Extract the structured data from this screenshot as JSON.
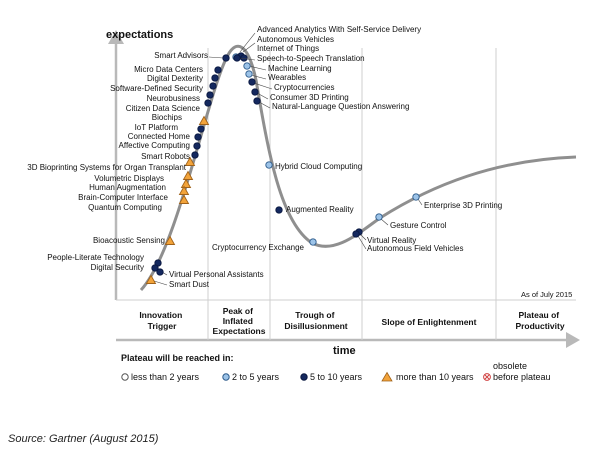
{
  "y_axis_label": "expectations",
  "x_axis_label": "time",
  "as_of": "As of July 2015",
  "source": "Source: Gartner (August 2015)",
  "phases": [
    {
      "id": "innovation-trigger",
      "lines": [
        "Innovation",
        "Trigger"
      ]
    },
    {
      "id": "peak-of-inflated-expectations",
      "lines": [
        "Peak of",
        "Inflated",
        "Expectations"
      ]
    },
    {
      "id": "trough-of-disillusionment",
      "lines": [
        "Trough of",
        "Disillusionment"
      ]
    },
    {
      "id": "slope-of-enlightenment",
      "lines": [
        "Slope of Enlightenment"
      ]
    },
    {
      "id": "plateau-of-productivity",
      "lines": [
        "Plateau of",
        "Productivity"
      ]
    }
  ],
  "legend": {
    "title": "Plateau will be reached in:",
    "items": [
      {
        "key": "lt2",
        "label": "less than 2 years",
        "fill": "#ffffff",
        "stroke": "#555555"
      },
      {
        "key": "2to5",
        "label": "2 to 5 years",
        "fill": "#9cc3e8",
        "stroke": "#2c5a8a"
      },
      {
        "key": "5to10",
        "label": "5 to 10 years",
        "fill": "#14285e",
        "stroke": "#0a1840"
      },
      {
        "key": "gt10",
        "label": "more than 10 years",
        "fill": "#f2a33a",
        "stroke": "#a0621a"
      },
      {
        "key": "obsolete",
        "label": "obsolete before plateau",
        "lines": [
          "obsolete",
          "before plateau"
        ],
        "fill": "#ffffff",
        "stroke": "#d04040"
      }
    ]
  },
  "technologies": [
    {
      "name": "Advanced Analytics With Self-Service Delivery",
      "category": "2to5"
    },
    {
      "name": "Autonomous Vehicles",
      "category": "5to10"
    },
    {
      "name": "Internet of Things",
      "category": "5to10"
    },
    {
      "name": "Speech-to-Speech Translation",
      "category": "5to10"
    },
    {
      "name": "Machine Learning",
      "category": "2to5"
    },
    {
      "name": "Wearables",
      "category": "2to5"
    },
    {
      "name": "Cryptocurrencies",
      "category": "5to10"
    },
    {
      "name": "Consumer 3D Printing",
      "category": "5to10"
    },
    {
      "name": "Natural-Language Question Answering",
      "category": "5to10"
    },
    {
      "name": "Smart Advisors",
      "category": "5to10"
    },
    {
      "name": "Micro Data Centers",
      "category": "5to10"
    },
    {
      "name": "Digital Dexterity",
      "category": "5to10"
    },
    {
      "name": "Software-Defined Security",
      "category": "5to10"
    },
    {
      "name": "Neurobusiness",
      "category": "5to10"
    },
    {
      "name": "Citizen Data Science",
      "category": "5to10"
    },
    {
      "name": "Biochips",
      "category": "gt10"
    },
    {
      "name": "IoT Platform",
      "category": "5to10"
    },
    {
      "name": "Connected Home",
      "category": "5to10"
    },
    {
      "name": "Affective Computing",
      "category": "5to10"
    },
    {
      "name": "Smart Robots",
      "category": "5to10"
    },
    {
      "name": "3D Bioprinting Systems for Organ Transplant",
      "category": "gt10"
    },
    {
      "name": "Volumetric Displays",
      "category": "gt10"
    },
    {
      "name": "Human Augmentation",
      "category": "gt10"
    },
    {
      "name": "Brain-Computer Interface",
      "category": "gt10"
    },
    {
      "name": "Quantum Computing",
      "category": "gt10"
    },
    {
      "name": "Bioacoustic Sensing",
      "category": "gt10"
    },
    {
      "name": "People-Literate Technology",
      "category": "5to10"
    },
    {
      "name": "Digital Security",
      "category": "5to10"
    },
    {
      "name": "Virtual Personal Assistants",
      "category": "5to10"
    },
    {
      "name": "Smart Dust",
      "category": "gt10"
    },
    {
      "name": "Hybrid Cloud Computing",
      "category": "2to5"
    },
    {
      "name": "Augmented Reality",
      "category": "5to10"
    },
    {
      "name": "Cryptocurrency Exchange",
      "category": "2to5"
    },
    {
      "name": "Virtual Reality",
      "category": "5to10"
    },
    {
      "name": "Autonomous Field Vehicles",
      "category": "5to10"
    },
    {
      "name": "Gesture Control",
      "category": "2to5"
    },
    {
      "name": "Enterprise 3D Printing",
      "category": "2to5"
    }
  ]
}
